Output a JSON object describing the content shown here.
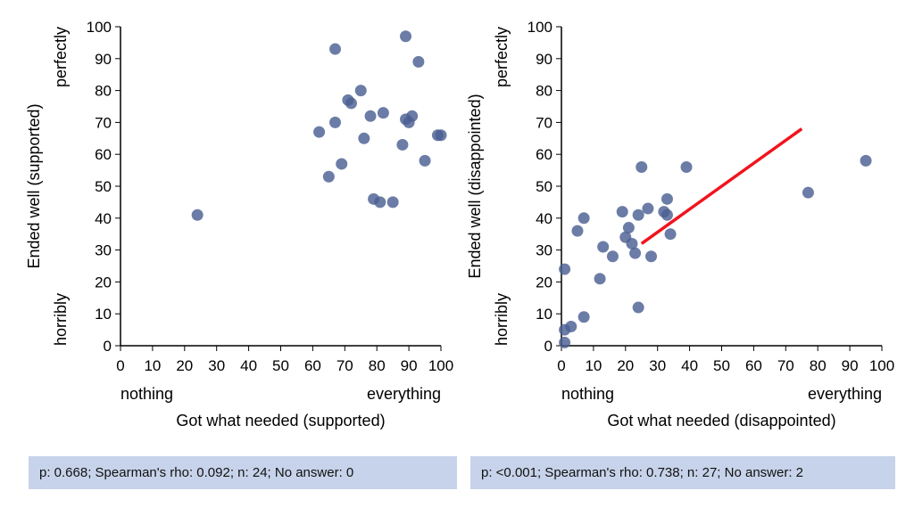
{
  "chart_data": [
    {
      "type": "scatter",
      "xlabel": "Got what needed (supported)",
      "ylabel": "Ended well (supported)",
      "xlim": [
        0,
        100
      ],
      "ylim": [
        0,
        100
      ],
      "xticks": [
        0,
        10,
        20,
        30,
        40,
        50,
        60,
        70,
        80,
        90,
        100
      ],
      "yticks": [
        0,
        10,
        20,
        30,
        40,
        50,
        60,
        70,
        80,
        90,
        100
      ],
      "x_low_label": "nothing",
      "x_high_label": "everything",
      "y_low_label": "horribly",
      "y_high_label": "perfectly",
      "points": [
        [
          24,
          41
        ],
        [
          62,
          67
        ],
        [
          65,
          53
        ],
        [
          67,
          93
        ],
        [
          67,
          70
        ],
        [
          69,
          57
        ],
        [
          71,
          77
        ],
        [
          72,
          76
        ],
        [
          75,
          80
        ],
        [
          76,
          65
        ],
        [
          78,
          72
        ],
        [
          79,
          46
        ],
        [
          81,
          45
        ],
        [
          82,
          73
        ],
        [
          85,
          45
        ],
        [
          88,
          63
        ],
        [
          89,
          97
        ],
        [
          89,
          71
        ],
        [
          90,
          70
        ],
        [
          91,
          72
        ],
        [
          93,
          89
        ],
        [
          95,
          58
        ],
        [
          99,
          66
        ],
        [
          100,
          66
        ]
      ],
      "trendline": null,
      "stats": "p: 0.668; Spearman's rho: 0.092; n: 24; No answer: 0"
    },
    {
      "type": "scatter",
      "xlabel": "Got what needed (disappointed)",
      "ylabel": "Ended well (disappointed)",
      "xlim": [
        0,
        100
      ],
      "ylim": [
        0,
        100
      ],
      "xticks": [
        0,
        10,
        20,
        30,
        40,
        50,
        60,
        70,
        80,
        90,
        100
      ],
      "yticks": [
        0,
        10,
        20,
        30,
        40,
        50,
        60,
        70,
        80,
        90,
        100
      ],
      "x_low_label": "nothing",
      "x_high_label": "everything",
      "y_low_label": "horribly",
      "y_high_label": "perfectly",
      "points": [
        [
          1,
          1
        ],
        [
          1,
          5
        ],
        [
          1,
          24
        ],
        [
          3,
          6
        ],
        [
          5,
          36
        ],
        [
          7,
          9
        ],
        [
          7,
          40
        ],
        [
          12,
          21
        ],
        [
          13,
          31
        ],
        [
          16,
          28
        ],
        [
          19,
          42
        ],
        [
          20,
          34
        ],
        [
          21,
          37
        ],
        [
          22,
          32
        ],
        [
          23,
          29
        ],
        [
          24,
          12
        ],
        [
          24,
          41
        ],
        [
          25,
          56
        ],
        [
          27,
          43
        ],
        [
          28,
          28
        ],
        [
          32,
          42
        ],
        [
          33,
          46
        ],
        [
          33,
          41
        ],
        [
          34,
          35
        ],
        [
          39,
          56
        ],
        [
          77,
          48
        ],
        [
          95,
          58
        ]
      ],
      "trendline": [
        [
          25,
          32
        ],
        [
          75,
          68
        ]
      ],
      "stats": "p: <0.001; Spearman's rho: 0.738; n: 27; No answer: 2"
    }
  ],
  "colors": {
    "point": "#4a5f93",
    "trendline": "#f0141e",
    "stats_bg": "#c7d3ea"
  }
}
